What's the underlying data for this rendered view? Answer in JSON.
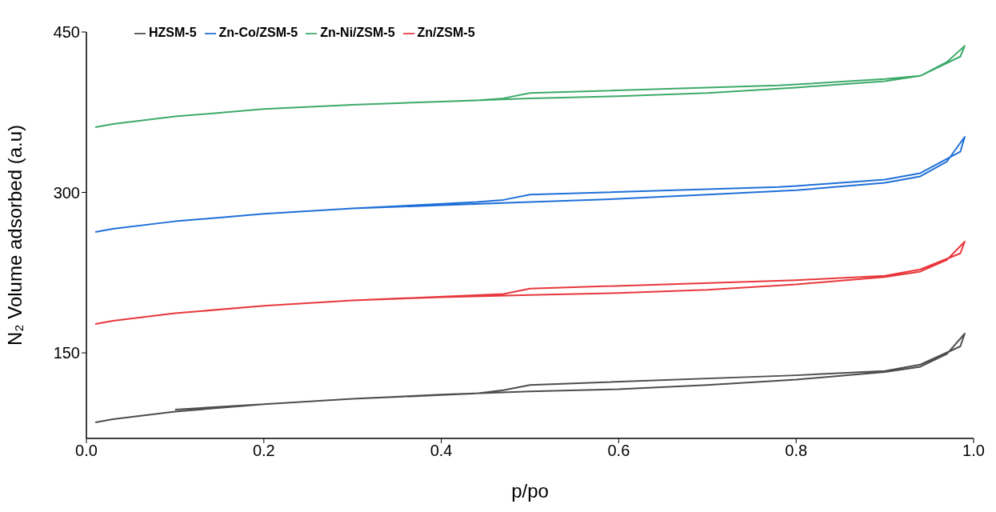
{
  "chart_data": {
    "type": "line",
    "xlabel": "p/po",
    "ylabel": "N₂ Volume adsorbed (a.u)",
    "xlim": [
      0,
      1
    ],
    "xticks": [
      {
        "value": 0,
        "label": "0.0"
      },
      0.2,
      0.4,
      0.6,
      0.8,
      {
        "value": 1,
        "label": "1.0"
      }
    ],
    "ylim": [
      70,
      450
    ],
    "yticks": [
      150,
      300,
      450
    ],
    "legend": "top left",
    "marker": "none",
    "line_style": "solid",
    "series": [
      {
        "name": "Zn-Ni/ZSM-5",
        "color": "#3daa6a",
        "x": [
          0.01,
          0.03,
          0.1,
          0.2,
          0.3,
          0.4,
          0.5,
          0.6,
          0.7,
          0.8,
          0.9,
          0.94,
          0.97,
          0.99,
          0.985,
          0.94,
          0.9,
          0.8,
          0.78,
          0.5,
          0.47,
          0.44,
          0.3,
          0.2,
          0.1
        ],
        "values": [
          361,
          364,
          371,
          378,
          382,
          385,
          388,
          390,
          393,
          398,
          404,
          409,
          422,
          437,
          427,
          409,
          406,
          401,
          400,
          393,
          388,
          386,
          382,
          378,
          371
        ]
      },
      {
        "name": "Zn-Co/ZSM-5",
        "color": "#1f6fd8",
        "x": [
          0.01,
          0.03,
          0.1,
          0.2,
          0.3,
          0.4,
          0.5,
          0.6,
          0.7,
          0.8,
          0.9,
          0.94,
          0.97,
          0.99,
          0.985,
          0.94,
          0.9,
          0.8,
          0.78,
          0.5,
          0.47,
          0.44,
          0.3,
          0.2,
          0.1
        ],
        "values": [
          263,
          266,
          273,
          280,
          285,
          288,
          291,
          294,
          298,
          302,
          309,
          315,
          329,
          352,
          338,
          318,
          312,
          306,
          305,
          298,
          293,
          291,
          285,
          280,
          273
        ]
      },
      {
        "name": "Zn/ZSM-5",
        "color": "#e8373c",
        "x": [
          0.01,
          0.03,
          0.1,
          0.2,
          0.3,
          0.4,
          0.5,
          0.6,
          0.7,
          0.8,
          0.9,
          0.94,
          0.97,
          0.99,
          0.985,
          0.94,
          0.9,
          0.8,
          0.5,
          0.47,
          0.3,
          0.2,
          0.1
        ],
        "values": [
          177,
          180,
          187,
          194,
          199,
          202,
          204,
          206,
          209,
          214,
          221,
          226,
          237,
          254,
          243,
          228,
          222,
          218,
          210,
          205,
          199,
          194,
          187
        ]
      },
      {
        "name": "HZSM-5",
        "color": "#4d4d4d",
        "x": [
          0.01,
          0.03,
          0.1,
          0.2,
          0.3,
          0.4,
          0.5,
          0.6,
          0.7,
          0.8,
          0.9,
          0.94,
          0.97,
          0.99,
          0.985,
          0.94,
          0.9,
          0.8,
          0.5,
          0.47,
          0.44,
          0.3,
          0.2,
          0.1
        ],
        "values": [
          85,
          88,
          95,
          102,
          107,
          111,
          114,
          116,
          120,
          125,
          132,
          137,
          149,
          168,
          156,
          139,
          133,
          129,
          120,
          115,
          112,
          107,
          102,
          97
        ]
      }
    ]
  }
}
